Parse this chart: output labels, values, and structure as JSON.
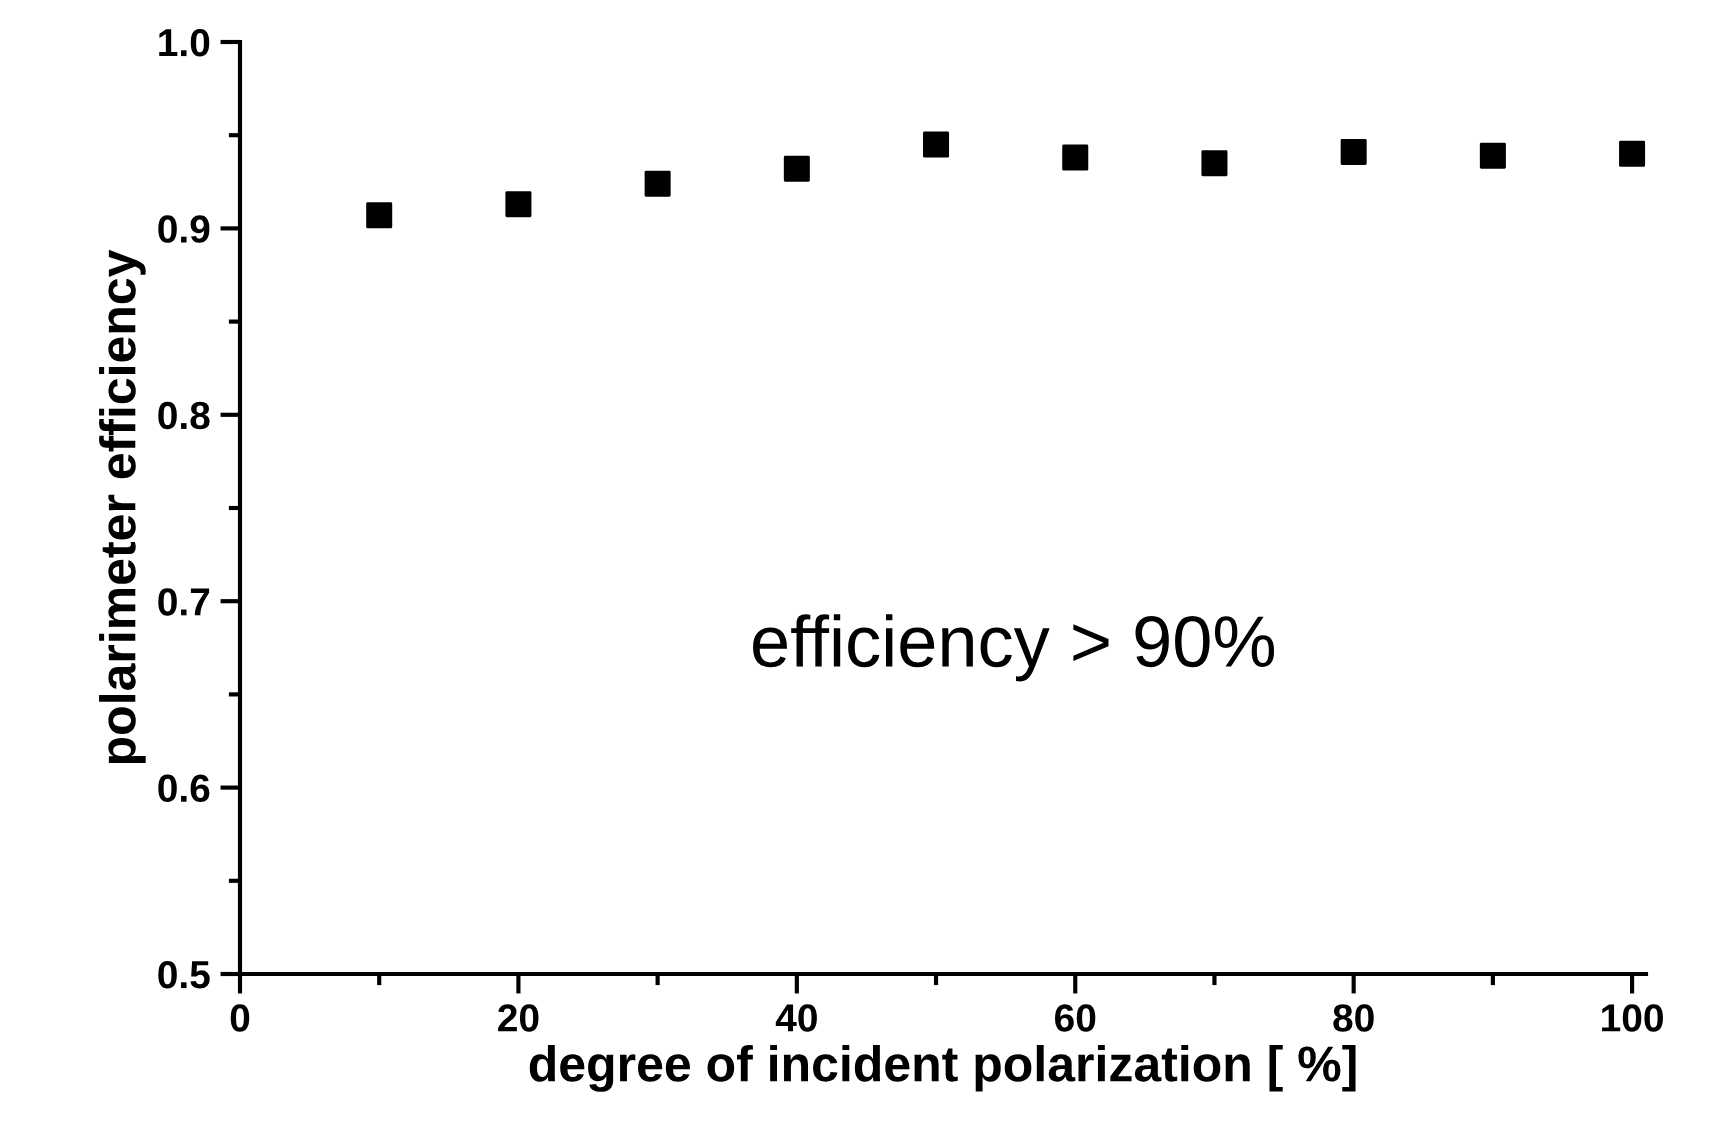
{
  "chart_data": {
    "type": "scatter",
    "xlabel": "degree of incident polarization [ %]",
    "ylabel": "polarimeter efficiency",
    "x": [
      10,
      20,
      30,
      40,
      50,
      60,
      70,
      80,
      90,
      100
    ],
    "series": [
      {
        "color": "#000000",
        "values": [
          0.907,
          0.913,
          0.924,
          0.932,
          0.945,
          0.938,
          0.935,
          0.941,
          0.939,
          0.94
        ]
      }
    ],
    "marker": "square",
    "xlim": [
      0,
      101
    ],
    "ylim": [
      0.5,
      1.0
    ],
    "xticks": [
      0,
      20,
      40,
      60,
      80,
      100
    ],
    "yticks": [
      {
        "value": 0.5,
        "label": "0.5"
      },
      {
        "value": 0.6,
        "label": "0.6"
      },
      {
        "value": 0.7,
        "label": "0.7"
      },
      {
        "value": 0.8,
        "label": "0.8"
      },
      {
        "value": 0.9,
        "label": "0.9"
      },
      {
        "value": 1.0,
        "label": "1.0"
      }
    ],
    "annotations": [
      "efficiency > 90%"
    ],
    "grid": false,
    "legend": false
  }
}
